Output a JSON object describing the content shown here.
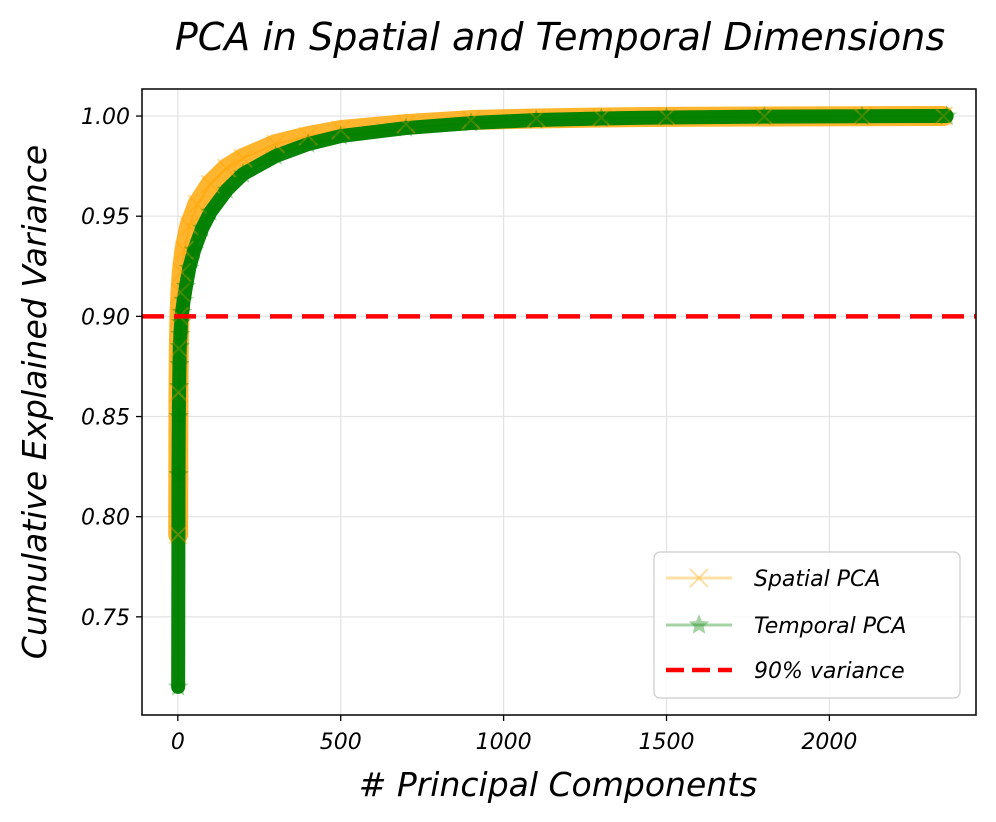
{
  "chart_data": {
    "type": "line",
    "title": "PCA in Spatial and Temporal Dimensions",
    "xlabel": "# Principal Components",
    "ylabel": "Cumulative Explained Variance",
    "xlim": [
      -110,
      2450
    ],
    "ylim": [
      0.701,
      1.0135
    ],
    "xticks": [
      0,
      500,
      1000,
      1500,
      2000
    ],
    "yticks": [
      0.75,
      0.8,
      0.85,
      0.9,
      0.95,
      1.0
    ],
    "xtick_labels": [
      "0",
      "500",
      "1000",
      "1500",
      "2000"
    ],
    "ytick_labels": [
      "0.75",
      "0.80",
      "0.85",
      "0.90",
      "0.95",
      "1.00"
    ],
    "grid": true,
    "legend_position": "lower-right",
    "series": [
      {
        "name": "Spatial PCA",
        "color": "#ffa500",
        "marker": "x",
        "x": [
          1,
          2,
          3,
          5,
          8,
          12,
          20,
          35,
          60,
          100,
          150,
          200,
          300,
          400,
          500,
          700,
          900,
          1100,
          1300,
          1500,
          1800,
          2100,
          2350
        ],
        "y": [
          0.791,
          0.862,
          0.884,
          0.9,
          0.912,
          0.922,
          0.933,
          0.945,
          0.956,
          0.966,
          0.974,
          0.979,
          0.986,
          0.99,
          0.993,
          0.996,
          0.998,
          0.9988,
          0.9993,
          0.9996,
          0.9998,
          0.9999,
          1.0
        ]
      },
      {
        "name": "Temporal PCA",
        "color": "#008000",
        "marker": "star",
        "x": [
          1,
          2,
          3,
          4,
          5,
          6,
          8,
          10,
          13,
          18,
          25,
          35,
          50,
          75,
          100,
          150,
          200,
          300,
          400,
          500,
          700,
          900,
          1100,
          1300,
          1500,
          1800,
          2100,
          2360
        ],
        "y": [
          0.715,
          0.821,
          0.85,
          0.865,
          0.876,
          0.885,
          0.891,
          0.897,
          0.902,
          0.908,
          0.915,
          0.924,
          0.933,
          0.944,
          0.952,
          0.963,
          0.971,
          0.98,
          0.986,
          0.99,
          0.994,
          0.9965,
          0.998,
          0.9988,
          0.9993,
          0.9997,
          0.9999,
          1.0
        ]
      },
      {
        "name": "90% variance",
        "color": "#ff0000",
        "style": "dashed",
        "y": 0.9
      }
    ]
  }
}
